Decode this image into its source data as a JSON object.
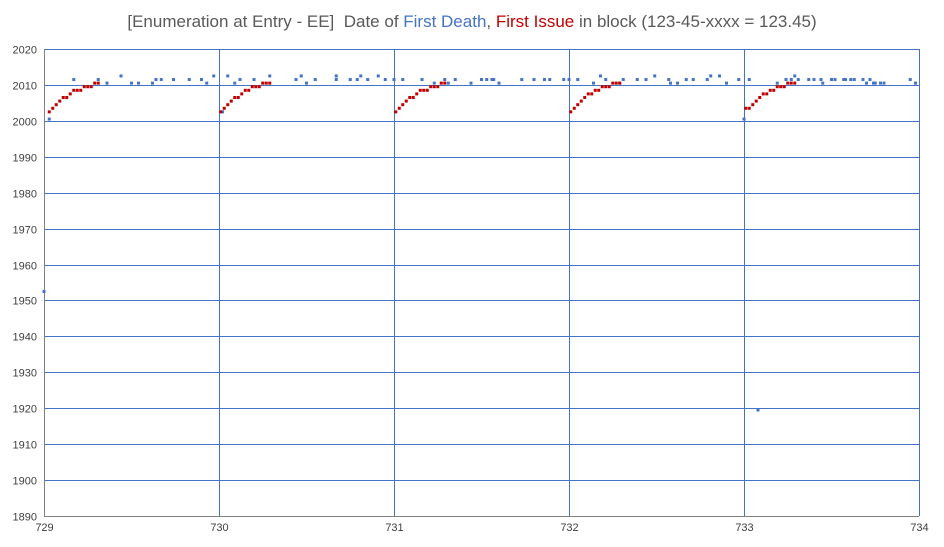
{
  "chart_data": {
    "type": "scatter",
    "title": {
      "prefix": "[Enumeration at Entry - EE]  Date of ",
      "death": "First Death",
      "sep": ", ",
      "issue": "First Issue",
      "suffix": " in block (123-45-xxxx = 123.45)"
    },
    "colors": {
      "death": "#4472C4",
      "issue": "#C00000",
      "grid": "#4472C4",
      "axis": "#808080",
      "text": "#595959"
    },
    "xlim": [
      729,
      734
    ],
    "ylim": [
      1890,
      2020
    ],
    "x_ticks": [
      729,
      730,
      731,
      732,
      733,
      734
    ],
    "y_ticks": [
      1890,
      1900,
      1910,
      1920,
      1930,
      1940,
      1950,
      1960,
      1970,
      1980,
      1990,
      2000,
      2010,
      2020
    ],
    "grid": true,
    "series": [
      {
        "name": "First Death",
        "color": "#4472C4",
        "x": [
          729.0,
          729.03,
          729.17,
          729.31,
          729.36,
          729.44,
          729.5,
          729.54,
          729.62,
          729.64,
          729.67,
          729.74,
          729.83,
          729.9,
          729.93,
          729.97,
          730.02,
          730.05,
          730.09,
          730.12,
          730.2,
          730.29,
          730.44,
          730.47,
          730.5,
          730.55,
          730.67,
          730.67,
          730.75,
          730.79,
          730.81,
          730.85,
          730.91,
          730.95,
          731.0,
          731.05,
          731.16,
          731.23,
          731.29,
          731.31,
          731.35,
          731.44,
          731.5,
          731.53,
          731.56,
          731.57,
          731.6,
          731.73,
          731.8,
          731.86,
          731.89,
          731.97,
          732.0,
          732.05,
          732.14,
          732.18,
          732.21,
          732.29,
          732.31,
          732.39,
          732.44,
          732.49,
          732.57,
          732.58,
          732.62,
          732.67,
          732.71,
          732.79,
          732.81,
          732.86,
          732.9,
          732.97,
          733.0,
          733.03,
          733.08,
          733.19,
          733.24,
          733.27,
          733.29,
          733.31,
          733.37,
          733.4,
          733.44,
          733.45,
          733.5,
          733.52,
          733.57,
          733.58,
          733.61,
          733.63,
          733.68,
          733.7,
          733.72,
          733.74,
          733.75,
          733.78,
          733.8,
          733.95,
          733.98
        ],
        "y": [
          1952.5,
          2000.5,
          2011.5,
          2011.5,
          2010.5,
          2012.5,
          2010.5,
          2010.5,
          2010.5,
          2011.5,
          2011.5,
          2011.5,
          2011.5,
          2011.5,
          2010.5,
          2012.5,
          2002.5,
          2012.5,
          2010.5,
          2011.5,
          2011.5,
          2012.5,
          2011.5,
          2012.5,
          2010.5,
          2011.5,
          2011.5,
          2012.5,
          2011.5,
          2011.5,
          2012.5,
          2011.5,
          2012.5,
          2011.5,
          2011.5,
          2011.5,
          2011.5,
          2010.5,
          2011.5,
          2010.5,
          2011.5,
          2010.5,
          2011.5,
          2011.5,
          2011.5,
          2011.5,
          2010.5,
          2011.5,
          2011.5,
          2011.5,
          2011.5,
          2011.5,
          2011.5,
          2011.5,
          2010.5,
          2012.5,
          2011.5,
          2010.5,
          2011.5,
          2011.5,
          2011.5,
          2012.5,
          2011.5,
          2010.5,
          2010.5,
          2011.5,
          2011.5,
          2011.5,
          2012.5,
          2012.5,
          2010.5,
          2011.5,
          2000.5,
          2011.5,
          1919.5,
          2010.5,
          2011.5,
          2011.5,
          2012.5,
          2011.5,
          2011.5,
          2011.5,
          2011.5,
          2010.5,
          2011.5,
          2011.5,
          2011.5,
          2011.5,
          2011.5,
          2011.5,
          2011.5,
          2010.5,
          2011.5,
          2010.5,
          2010.5,
          2010.5,
          2010.5,
          2011.5,
          2010.5
        ]
      },
      {
        "name": "First Issue",
        "color": "#C00000",
        "x": [
          729.03,
          729.05,
          729.07,
          729.09,
          729.11,
          729.13,
          729.15,
          729.17,
          729.19,
          729.21,
          729.23,
          729.25,
          729.27,
          729.29,
          729.31,
          730.01,
          730.03,
          730.05,
          730.07,
          730.09,
          730.11,
          730.13,
          730.15,
          730.17,
          730.19,
          730.21,
          730.23,
          730.25,
          730.27,
          730.29,
          731.01,
          731.03,
          731.05,
          731.07,
          731.09,
          731.11,
          731.13,
          731.15,
          731.17,
          731.19,
          731.21,
          731.23,
          731.25,
          731.27,
          731.29,
          732.01,
          732.03,
          732.05,
          732.07,
          732.09,
          732.11,
          732.13,
          732.15,
          732.17,
          732.19,
          732.21,
          732.23,
          732.25,
          732.27,
          732.29,
          733.01,
          733.03,
          733.05,
          733.07,
          733.09,
          733.11,
          733.13,
          733.15,
          733.17,
          733.19,
          733.21,
          733.23,
          733.25,
          733.27,
          733.29
        ],
        "y": [
          2002.5,
          2003.5,
          2004.5,
          2005.5,
          2006.5,
          2006.5,
          2007.5,
          2008.5,
          2008.5,
          2008.5,
          2009.5,
          2009.5,
          2009.5,
          2010.5,
          2010.5,
          2002.5,
          2003.5,
          2004.5,
          2005.5,
          2006.5,
          2006.5,
          2007.5,
          2008.5,
          2008.5,
          2009.5,
          2009.5,
          2009.5,
          2010.5,
          2010.5,
          2010.5,
          2002.5,
          2003.5,
          2004.5,
          2005.5,
          2006.5,
          2006.5,
          2007.5,
          2008.5,
          2008.5,
          2008.5,
          2009.5,
          2009.5,
          2009.5,
          2010.5,
          2010.5,
          2002.5,
          2003.5,
          2004.5,
          2005.5,
          2006.5,
          2007.5,
          2007.5,
          2008.5,
          2008.5,
          2009.5,
          2009.5,
          2009.5,
          2010.5,
          2010.5,
          2010.5,
          2003.5,
          2003.5,
          2004.5,
          2005.5,
          2006.5,
          2007.5,
          2007.5,
          2008.5,
          2008.5,
          2009.5,
          2009.5,
          2009.5,
          2010.5,
          2010.5,
          2010.5
        ]
      }
    ]
  }
}
